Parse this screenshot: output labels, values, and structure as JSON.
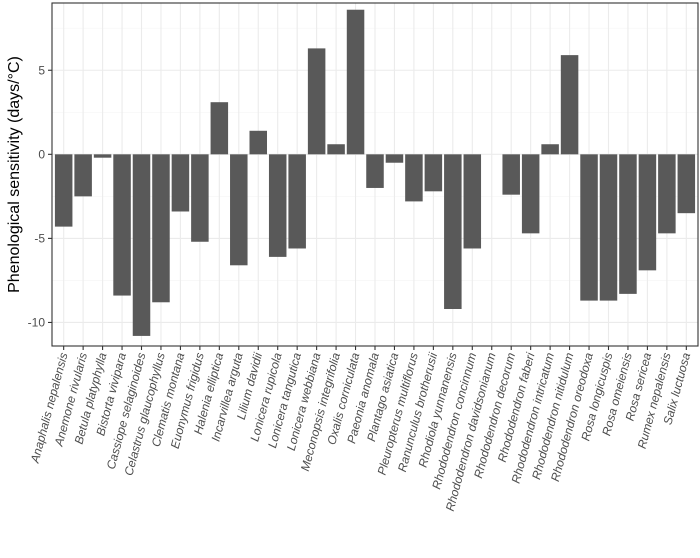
{
  "chart_data": {
    "type": "bar",
    "title": "",
    "xlabel": "",
    "ylabel": "Phenological sensitivity (days/°C)",
    "ylim": [
      -11.4,
      9.0
    ],
    "yticks": [
      -10,
      -5,
      0,
      5
    ],
    "y_minor_ticks": [
      -7.5,
      -2.5,
      2.5,
      7.5
    ],
    "grid": true,
    "bar_color": "#595959",
    "categories": [
      "Anaphalis nepalensis",
      "Anemone rivularis",
      "Betula platyphylla",
      "Bistorta vivipara",
      "Cassiope selaginoides",
      "Celastrus glaucophyllus",
      "Clematis montana",
      "Euonymus frigidus",
      "Halenia elliptica",
      "Incarvillea arguta",
      "Lilium davidii",
      "Lonicera rupicola",
      "Lonicera tangutica",
      "Lonicera webbiana",
      "Meconopsis integrifolia",
      "Oxalis corniculata",
      "Paeonia anomala",
      "Plantago asiatica",
      "Pleuropterus multiflorus",
      "Ranunculus brotherusii",
      "Rhodiola yunnanensis",
      "Rhododendron concinnum",
      "Rhododendron davidsonianum",
      "Rhododendron decorum",
      "Rhododendron faberi",
      "Rhododendron intricatum",
      "Rhododendron nitidulum",
      "Rhododendron oreodoxa",
      "Rosa longicuspis",
      "Rosa omeiensis",
      "Rosa sericea",
      "Rumex nepalensis",
      "Salix luctuosa"
    ],
    "values": [
      -4.3,
      -2.5,
      -0.2,
      -8.4,
      -10.8,
      -8.8,
      -3.4,
      -5.2,
      3.1,
      -6.6,
      1.4,
      -6.1,
      -5.6,
      6.3,
      0.6,
      8.6,
      -2.0,
      -0.5,
      -2.8,
      -2.2,
      -9.2,
      -5.6,
      0.0,
      -2.4,
      -4.7,
      0.6,
      5.9,
      -8.7,
      -8.7,
      -8.3,
      -6.9,
      -4.7,
      -3.5
    ]
  },
  "colors": {
    "panel_border": "#333333",
    "grid_major": "#ebebeb",
    "grid_minor": "#f5f5f5",
    "tick_color": "#333333",
    "label_color": "#4d4d4d"
  }
}
